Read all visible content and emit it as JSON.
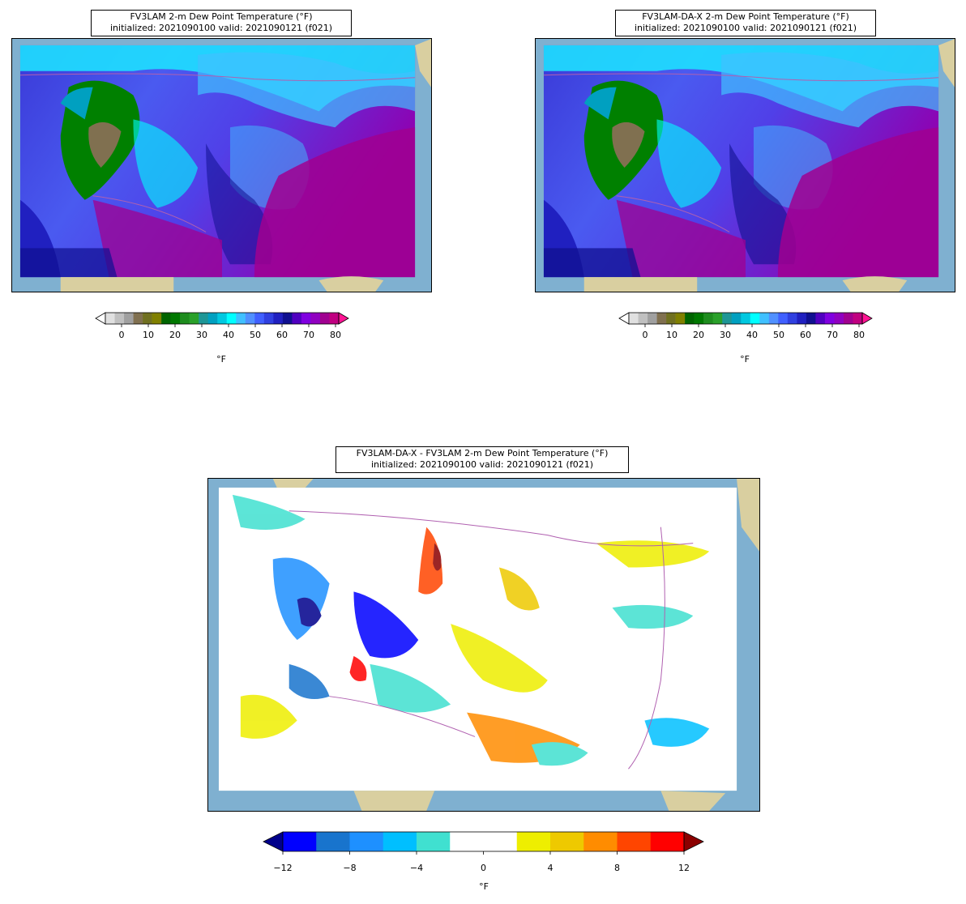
{
  "panels": [
    {
      "id": "fv3lam",
      "title_line1": "FV3LAM 2-m Dew Point Temperature (°F)",
      "title_line2": "initialized: 2021090100 valid: 2021090121 (f021)",
      "colorbar": {
        "ticks": [
          "0",
          "10",
          "20",
          "30",
          "40",
          "50",
          "60",
          "70",
          "80"
        ],
        "unit": "°F",
        "colors": [
          "#ffffff",
          "#e0e0e0",
          "#c0c0c0",
          "#a0a0a0",
          "#807050",
          "#707020",
          "#808000",
          "#006400",
          "#007800",
          "#1e8c1e",
          "#2aa02a",
          "#1e9696",
          "#00a0c0",
          "#00c8e0",
          "#00ffff",
          "#40c0ff",
          "#5090ff",
          "#4060ff",
          "#3040e0",
          "#2020c0",
          "#101090",
          "#5000c0",
          "#8000e0",
          "#9000c0",
          "#a00090",
          "#c00080",
          "#ff1493"
        ]
      }
    },
    {
      "id": "fv3lam-da-x",
      "title_line1": "FV3LAM-DA-X 2-m Dew Point Temperature (°F)",
      "title_line2": "initialized: 2021090100 valid: 2021090121 (f021)",
      "colorbar": {
        "ticks": [
          "0",
          "10",
          "20",
          "30",
          "40",
          "50",
          "60",
          "70",
          "80"
        ],
        "unit": "°F",
        "colors": [
          "#ffffff",
          "#e0e0e0",
          "#c0c0c0",
          "#a0a0a0",
          "#807050",
          "#707020",
          "#808000",
          "#006400",
          "#007800",
          "#1e8c1e",
          "#2aa02a",
          "#1e9696",
          "#00a0c0",
          "#00c8e0",
          "#00ffff",
          "#40c0ff",
          "#5090ff",
          "#4060ff",
          "#3040e0",
          "#2020c0",
          "#101090",
          "#5000c0",
          "#8000e0",
          "#9000c0",
          "#a00090",
          "#c00080",
          "#ff1493"
        ]
      }
    },
    {
      "id": "difference",
      "title_line1": "FV3LAM-DA-X - FV3LAM 2-m Dew Point Temperature (°F)",
      "title_line2": "initialized: 2021090100 valid: 2021090121 (f021)",
      "colorbar": {
        "ticks": [
          "−12",
          "−8",
          "−4",
          "0",
          "4",
          "8",
          "12"
        ],
        "unit": "°F",
        "colors": [
          "#0000ff",
          "#1874cd",
          "#1e90ff",
          "#00bfff",
          "#40e0d0",
          "#ffffff",
          "#ffffff",
          "#eeee00",
          "#eec900",
          "#ff8c00",
          "#ff4500",
          "#ff0000"
        ],
        "under_color": "#00008b",
        "over_color": "#8b0000"
      }
    }
  ],
  "map_colors": {
    "ocean": "#7fb0d0",
    "land": "#d9cfa0",
    "boundary": "#b060b0"
  }
}
